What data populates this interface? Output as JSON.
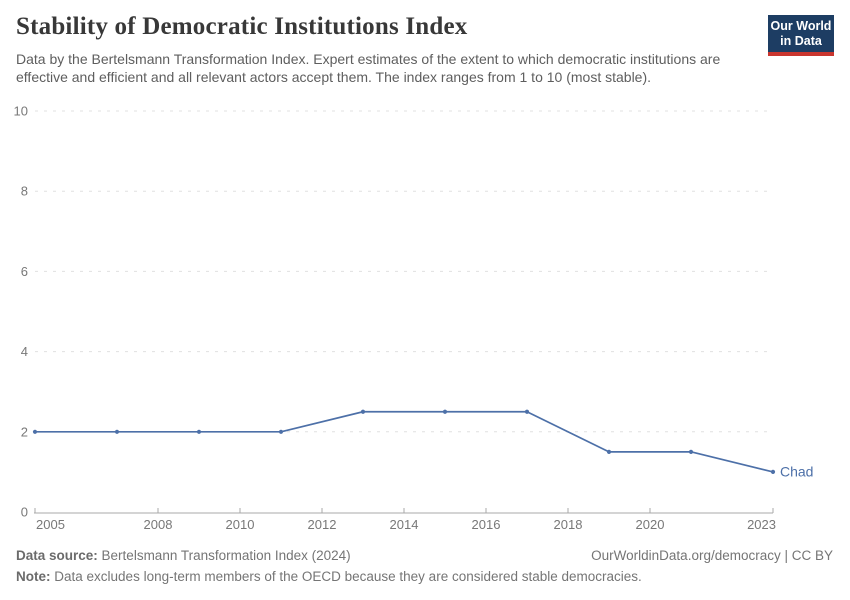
{
  "header": {
    "title": "Stability of Democratic Institutions Index",
    "subtitle": "Data by the Bertelsmann Transformation Index. Expert estimates of the extent to which democratic institutions are effective and efficient and all relevant actors accept them. The index ranges from 1 to 10 (most stable).",
    "logo": {
      "line1": "Our World",
      "line2": "in Data",
      "bg_color": "#1d3d63",
      "stripe_color": "#c9352e"
    }
  },
  "chart_data": {
    "type": "line",
    "title": "Stability of Democratic Institutions Index",
    "entity": "Chad",
    "series": [
      {
        "name": "Chad",
        "x": [
          2005,
          2007,
          2009,
          2011,
          2013,
          2015,
          2017,
          2019,
          2021,
          2023
        ],
        "values": [
          2,
          2,
          2,
          2,
          2.5,
          2.5,
          2.5,
          1.5,
          1.5,
          1
        ]
      }
    ],
    "xlim": [
      2005,
      2023
    ],
    "ylim": [
      0,
      10
    ],
    "xticks": [
      2005,
      2008,
      2010,
      2012,
      2014,
      2016,
      2018,
      2020,
      2023
    ],
    "yticks": [
      0,
      2,
      4,
      6,
      8,
      10
    ],
    "grid": "horizontal-dashed",
    "legend_position": "end-of-line-label",
    "line_color": "#4d70a8",
    "grid_color": "#e0e0e0",
    "axis_color": "#a9a9a9",
    "tick_label_color": "#787878"
  },
  "footer": {
    "source_label": "Data source:",
    "source_text": "Bertelsmann Transformation Index (2024)",
    "link_text": "OurWorldinData.org/democracy | CC BY",
    "note_label": "Note:",
    "note_text": "Data excludes long-term members of the OECD because they are considered stable democracies."
  }
}
